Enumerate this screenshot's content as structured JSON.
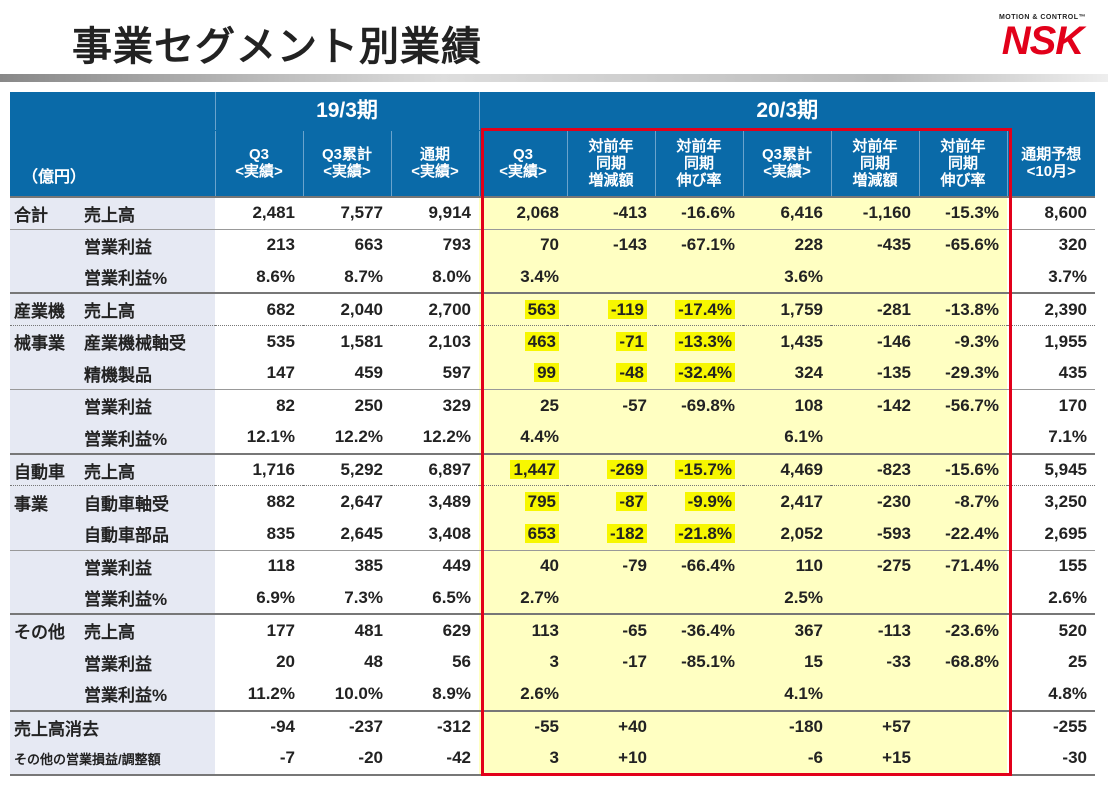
{
  "title": "事業セグメント別業績",
  "logo": {
    "sub": "MOTION & CONTROL™",
    "main": "NSK"
  },
  "header": {
    "unit": "（億円）",
    "period1": "19/3期",
    "period2": "20/3期",
    "columns": [
      "Q3\n<実績>",
      "Q3累計\n<実績>",
      "通期\n<実績>",
      "Q3\n<実績>",
      "対前年\n同期\n増減額",
      "対前年\n同期\n伸び率",
      "Q3累計\n<実績>",
      "対前年\n同期\n増減額",
      "対前年\n同期\n伸び率",
      "通期予想\n<10月>"
    ]
  },
  "highlight_color": "#f7f700",
  "rows": [
    {
      "seg": "合計",
      "item": "売上高",
      "v": [
        "2,481",
        "7,577",
        "9,914",
        "2,068",
        "-413",
        "-16.6%",
        "6,416",
        "-1,160",
        "-15.3%",
        "8,600"
      ],
      "sep": "gs"
    },
    {
      "seg": "",
      "item": "営業利益",
      "v": [
        "213",
        "663",
        "793",
        "70",
        "-143",
        "-67.1%",
        "228",
        "-435",
        "-65.6%",
        "320"
      ],
      "sep": "thin"
    },
    {
      "seg": "",
      "item": "営業利益%",
      "v": [
        "8.6%",
        "8.7%",
        "8.0%",
        "3.4%",
        "",
        "",
        "3.6%",
        "",
        "",
        "3.7%"
      ]
    },
    {
      "seg": "産業機",
      "item": "売上高",
      "v": [
        "682",
        "2,040",
        "2,700",
        "563",
        "-119",
        "-17.4%",
        "1,759",
        "-281",
        "-13.8%",
        "2,390"
      ],
      "sep": "gs",
      "hl": true
    },
    {
      "seg": "械事業",
      "item": "産業機械軸受",
      "v": [
        "535",
        "1,581",
        "2,103",
        "463",
        "-71",
        "-13.3%",
        "1,435",
        "-146",
        "-9.3%",
        "1,955"
      ],
      "sep": "dot",
      "hl": true
    },
    {
      "seg": "",
      "item": "精機製品",
      "v": [
        "147",
        "459",
        "597",
        "99",
        "-48",
        "-32.4%",
        "324",
        "-135",
        "-29.3%",
        "435"
      ],
      "hl": true
    },
    {
      "seg": "",
      "item": "営業利益",
      "v": [
        "82",
        "250",
        "329",
        "25",
        "-57",
        "-69.8%",
        "108",
        "-142",
        "-56.7%",
        "170"
      ],
      "sep": "thin"
    },
    {
      "seg": "",
      "item": "営業利益%",
      "v": [
        "12.1%",
        "12.2%",
        "12.2%",
        "4.4%",
        "",
        "",
        "6.1%",
        "",
        "",
        "7.1%"
      ]
    },
    {
      "seg": "自動車",
      "item": "売上高",
      "v": [
        "1,716",
        "5,292",
        "6,897",
        "1,447",
        "-269",
        "-15.7%",
        "4,469",
        "-823",
        "-15.6%",
        "5,945"
      ],
      "sep": "gs",
      "hl": true
    },
    {
      "seg": "事業",
      "item": "自動車軸受",
      "v": [
        "882",
        "2,647",
        "3,489",
        "795",
        "-87",
        "-9.9%",
        "2,417",
        "-230",
        "-8.7%",
        "3,250"
      ],
      "sep": "dot",
      "hl": true
    },
    {
      "seg": "",
      "item": "自動車部品",
      "v": [
        "835",
        "2,645",
        "3,408",
        "653",
        "-182",
        "-21.8%",
        "2,052",
        "-593",
        "-22.4%",
        "2,695"
      ],
      "hl": true
    },
    {
      "seg": "",
      "item": "営業利益",
      "v": [
        "118",
        "385",
        "449",
        "40",
        "-79",
        "-66.4%",
        "110",
        "-275",
        "-71.4%",
        "155"
      ],
      "sep": "thin"
    },
    {
      "seg": "",
      "item": "営業利益%",
      "v": [
        "6.9%",
        "7.3%",
        "6.5%",
        "2.7%",
        "",
        "",
        "2.5%",
        "",
        "",
        "2.6%"
      ]
    },
    {
      "seg": "その他",
      "item": "売上高",
      "v": [
        "177",
        "481",
        "629",
        "113",
        "-65",
        "-36.4%",
        "367",
        "-113",
        "-23.6%",
        "520"
      ],
      "sep": "gs"
    },
    {
      "seg": "",
      "item": "営業利益",
      "v": [
        "20",
        "48",
        "56",
        "3",
        "-17",
        "-85.1%",
        "15",
        "-33",
        "-68.8%",
        "25"
      ]
    },
    {
      "seg": "",
      "item": "営業利益%",
      "v": [
        "11.2%",
        "10.0%",
        "8.9%",
        "2.6%",
        "",
        "",
        "4.1%",
        "",
        "",
        "4.8%"
      ]
    },
    {
      "seg": "売上高消去",
      "item": "",
      "v": [
        "-94",
        "-237",
        "-312",
        "-55",
        "+40",
        "",
        "-180",
        "+57",
        "",
        "-255"
      ],
      "sep": "gs",
      "span": true
    },
    {
      "seg": "その他の営業損益/調整額",
      "item": "",
      "v": [
        "-7",
        "-20",
        "-42",
        "3",
        "+10",
        "",
        "-6",
        "+15",
        "",
        "-30"
      ],
      "span": true,
      "small": true,
      "last": true
    }
  ]
}
